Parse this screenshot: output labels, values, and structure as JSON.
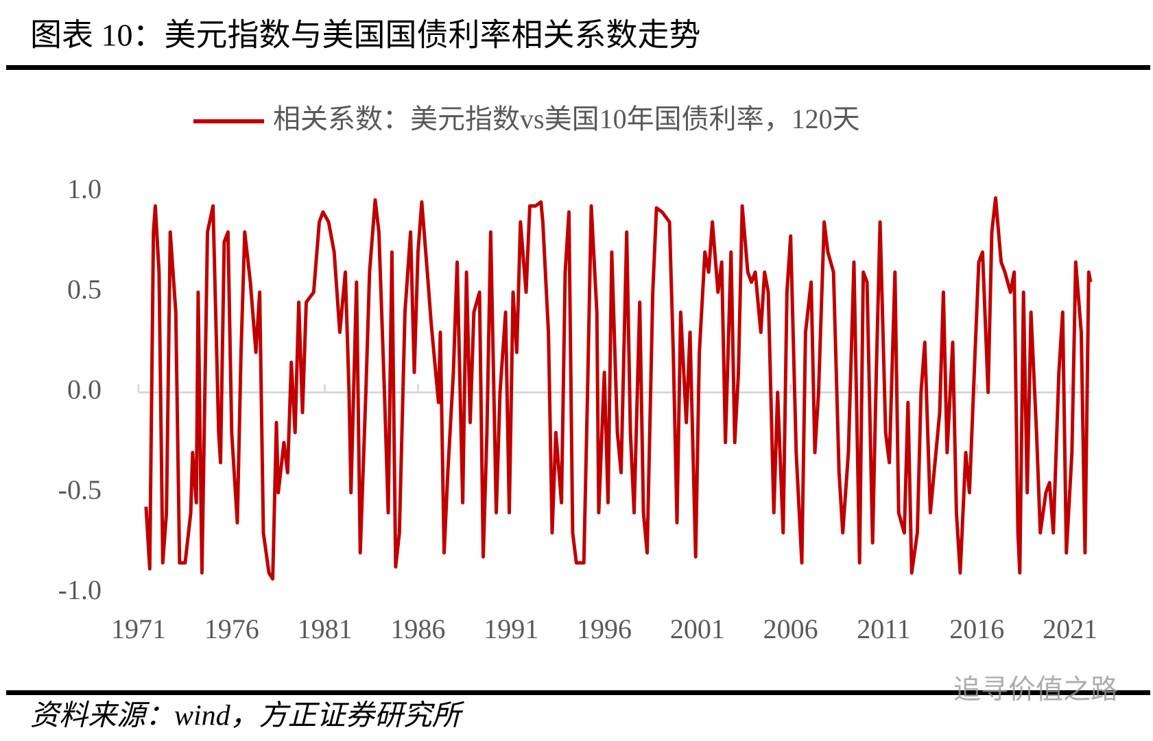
{
  "chart_data": {
    "type": "line",
    "title": "图表 10：美元指数与美国国债利率相关系数走势",
    "source": "资料来源：wind，方正证券研究所",
    "watermark": "追寻价值之路",
    "legend": "top",
    "xlim": [
      1971,
      2022.1
    ],
    "xticks": [
      1971,
      1976,
      1981,
      1986,
      1991,
      1996,
      2001,
      2006,
      2011,
      2016,
      2021
    ],
    "ylim": [
      -1,
      1
    ],
    "yticks": [
      {
        "value": 1,
        "label": "1.0"
      },
      {
        "value": 0.5,
        "label": "0.5"
      },
      {
        "value": 0,
        "label": "0.0"
      },
      {
        "value": -0.5,
        "label": "-0.5"
      },
      {
        "value": -1,
        "label": "-1.0"
      }
    ],
    "x": [
      1971.4,
      1971.6,
      1971.8,
      1971.9,
      1972.1,
      1972.3,
      1972.5,
      1972.7,
      1973.0,
      1973.2,
      1973.5,
      1973.8,
      1973.9,
      1974.1,
      1974.2,
      1974.4,
      1974.7,
      1975.0,
      1975.3,
      1975.4,
      1975.6,
      1975.8,
      1976.0,
      1976.3,
      1976.5,
      1976.7,
      1977.0,
      1977.3,
      1977.5,
      1977.7,
      1978.0,
      1978.2,
      1978.4,
      1978.5,
      1978.8,
      1979.0,
      1979.2,
      1979.4,
      1979.6,
      1979.8,
      1980.0,
      1980.4,
      1980.7,
      1980.9,
      1981.2,
      1981.5,
      1981.8,
      1982.1,
      1982.3,
      1982.4,
      1982.7,
      1982.9,
      1983.2,
      1983.4,
      1983.7,
      1983.9,
      1984.2,
      1984.4,
      1984.6,
      1984.8,
      1985.0,
      1985.3,
      1985.6,
      1985.8,
      1986.0,
      1986.2,
      1986.5,
      1986.7,
      1986.9,
      1987.1,
      1987.2,
      1987.4,
      1987.6,
      1987.9,
      1988.1,
      1988.4,
      1988.6,
      1988.8,
      1989.0,
      1989.3,
      1989.5,
      1989.7,
      1989.9,
      1990.2,
      1990.4,
      1990.7,
      1990.9,
      1991.1,
      1991.3,
      1991.5,
      1991.8,
      1992.0,
      1992.3,
      1992.6,
      1992.7,
      1993.0,
      1993.2,
      1993.4,
      1993.7,
      1993.9,
      1994.1,
      1994.3,
      1994.5,
      1994.9,
      1995.1,
      1995.3,
      1995.6,
      1995.7,
      1996.0,
      1996.2,
      1996.4,
      1996.7,
      1996.9,
      1997.2,
      1997.4,
      1997.6,
      1997.9,
      1998.1,
      1998.3,
      1998.6,
      1998.8,
      1999.1,
      1999.5,
      1999.7,
      1999.9,
      2000.1,
      2000.4,
      2000.6,
      2000.9,
      2001.1,
      2001.4,
      2001.6,
      2001.8,
      2002.1,
      2002.3,
      2002.5,
      2002.8,
      2003.0,
      2003.2,
      2003.4,
      2003.7,
      2003.9,
      2004.1,
      2004.4,
      2004.6,
      2004.8,
      2005.1,
      2005.3,
      2005.6,
      2005.8,
      2006.0,
      2006.3,
      2006.6,
      2006.8,
      2007.1,
      2007.3,
      2007.5,
      2007.8,
      2008.0,
      2008.3,
      2008.6,
      2008.8,
      2009.1,
      2009.4,
      2009.7,
      2009.9,
      2010.1,
      2010.4,
      2010.6,
      2010.8,
      2011.1,
      2011.3,
      2011.6,
      2011.8,
      2012.1,
      2012.3,
      2012.5,
      2012.8,
      2013.0,
      2013.2,
      2013.5,
      2013.7,
      2014.0,
      2014.2,
      2014.4,
      2014.7,
      2014.9,
      2015.1,
      2015.4,
      2015.6,
      2015.9,
      2016.1,
      2016.3,
      2016.6,
      2016.8,
      2017.0,
      2017.3,
      2017.5,
      2017.8,
      2018.0,
      2018.2,
      2018.3,
      2018.5,
      2018.7,
      2018.9,
      2019.2,
      2019.4,
      2019.7,
      2019.9,
      2020.1,
      2020.4,
      2020.6,
      2020.8,
      2021.1,
      2021.3,
      2021.6,
      2021.8,
      2022.0,
      2022.1
    ],
    "series": [
      {
        "name": "相关系数：美元指数vs美国10年国债利率，120天",
        "color": "#c00000",
        "values": [
          -0.57,
          -0.88,
          0.8,
          0.93,
          0.6,
          -0.85,
          -0.6,
          0.8,
          0.4,
          -0.85,
          -0.85,
          -0.6,
          -0.3,
          -0.55,
          0.5,
          -0.9,
          0.8,
          0.93,
          -0.2,
          -0.35,
          0.75,
          0.8,
          -0.2,
          -0.65,
          0.2,
          0.8,
          0.55,
          0.2,
          0.5,
          -0.7,
          -0.9,
          -0.93,
          -0.15,
          -0.5,
          -0.25,
          -0.4,
          0.15,
          -0.2,
          0.45,
          -0.1,
          0.45,
          0.5,
          0.85,
          0.9,
          0.85,
          0.7,
          0.3,
          0.6,
          0.0,
          -0.5,
          0.55,
          -0.8,
          0.0,
          0.6,
          0.96,
          0.8,
          0.0,
          -0.6,
          0.7,
          -0.87,
          -0.7,
          0.4,
          0.8,
          0.1,
          0.7,
          0.95,
          0.6,
          0.35,
          0.15,
          -0.05,
          0.3,
          -0.8,
          -0.4,
          0.1,
          0.65,
          -0.55,
          0.6,
          -0.15,
          0.4,
          0.5,
          -0.82,
          -0.2,
          0.8,
          -0.6,
          0.0,
          0.4,
          -0.6,
          0.5,
          0.2,
          0.85,
          0.5,
          0.93,
          0.93,
          0.95,
          0.85,
          0.3,
          -0.7,
          -0.2,
          -0.55,
          0.6,
          0.9,
          -0.7,
          -0.85,
          -0.85,
          0.0,
          0.93,
          0.4,
          -0.6,
          0.1,
          -0.55,
          0.7,
          -0.2,
          -0.4,
          0.8,
          -0.2,
          -0.6,
          0.45,
          -0.6,
          -0.8,
          0.5,
          0.92,
          0.9,
          0.85,
          0.2,
          -0.65,
          0.4,
          -0.15,
          0.3,
          -0.82,
          0.2,
          0.7,
          0.6,
          0.85,
          0.5,
          0.65,
          -0.25,
          0.7,
          -0.25,
          0.1,
          0.93,
          0.6,
          0.55,
          0.6,
          0.3,
          0.6,
          0.5,
          -0.6,
          0.0,
          -0.7,
          0.5,
          0.78,
          -0.3,
          -0.85,
          0.3,
          0.55,
          -0.3,
          0.0,
          0.85,
          0.7,
          0.6,
          -0.4,
          -0.7,
          -0.3,
          0.65,
          -0.85,
          0.6,
          0.55,
          -0.75,
          0.1,
          0.85,
          -0.2,
          -0.35,
          0.6,
          -0.6,
          -0.7,
          -0.05,
          -0.9,
          -0.7,
          0.0,
          0.25,
          -0.6,
          -0.4,
          -0.1,
          0.5,
          -0.3,
          0.25,
          -0.6,
          -0.9,
          -0.3,
          -0.5,
          0.2,
          0.65,
          0.7,
          0.0,
          0.8,
          0.97,
          0.65,
          0.6,
          0.5,
          0.6,
          -0.7,
          -0.9,
          0.5,
          -0.5,
          0.4,
          -0.2,
          -0.7,
          -0.5,
          -0.45,
          -0.7,
          0.1,
          0.4,
          -0.8,
          -0.3,
          0.65,
          0.3,
          -0.8,
          0.6,
          0.55
        ]
      }
    ]
  }
}
